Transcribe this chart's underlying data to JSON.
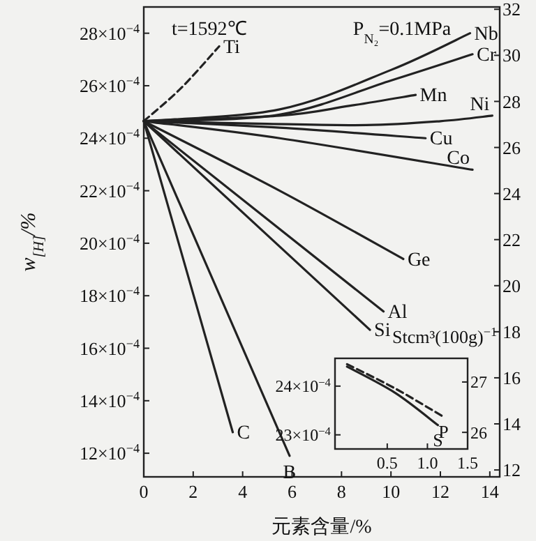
{
  "chart_data": [
    {
      "type": "line",
      "xlabel": "元素含量/%",
      "ylabel": "w$_{[H]}$/%",
      "y2label": "Stcm³(100g)$^{−1}$",
      "annotations": [
        "t=1592℃",
        "P$_{N₂}$=0.1MPa"
      ],
      "xlim": [
        0,
        14.4
      ],
      "xticks": [
        0,
        2,
        4,
        6,
        8,
        10,
        12,
        14
      ],
      "ylim": [
        0.00111,
        0.0029
      ],
      "yticks": [
        {
          "value": 0.0012,
          "label": "12×10$^{−4}$"
        },
        {
          "value": 0.0014,
          "label": "14×10$^{−4}$"
        },
        {
          "value": 0.0016,
          "label": "16×10$^{−4}$"
        },
        {
          "value": 0.0018,
          "label": "18×10$^{−4}$"
        },
        {
          "value": 0.002,
          "label": "20×10$^{−4}$"
        },
        {
          "value": 0.0022,
          "label": "22×10$^{−4}$"
        },
        {
          "value": 0.0024,
          "label": "24×10$^{−4}$"
        },
        {
          "value": 0.0026,
          "label": "26×10$^{−4}$"
        },
        {
          "value": 0.0028,
          "label": "28×10$^{−4}$"
        }
      ],
      "y2lim": [
        11.7,
        32.1
      ],
      "y2ticks": [
        12,
        14,
        16,
        18,
        20,
        22,
        24,
        26,
        28,
        30,
        32
      ],
      "grid": false,
      "legend": false,
      "marker": "none",
      "series": [
        {
          "name": "Ti",
          "color": "#222222",
          "line_style": "dashed",
          "x": [
            0,
            1.5,
            3.05
          ],
          "values": [
            0.002465,
            0.00259,
            0.00275
          ]
        },
        {
          "name": "Nb",
          "color": "#222222",
          "x": [
            0,
            5.5,
            10,
            13.2
          ],
          "values": [
            0.002465,
            0.00251,
            0.00266,
            0.0028
          ]
        },
        {
          "name": "Cr",
          "color": "#222222",
          "x": [
            0,
            5.5,
            10,
            13.3
          ],
          "values": [
            0.002465,
            0.00249,
            0.00262,
            0.00272
          ]
        },
        {
          "name": "Mn",
          "color": "#222222",
          "x": [
            0,
            5.5,
            8.3,
            11
          ],
          "values": [
            0.002465,
            0.002486,
            0.002523,
            0.002565
          ]
        },
        {
          "name": "Ni",
          "color": "#222222",
          "x": [
            0,
            5,
            9,
            12,
            14.1
          ],
          "values": [
            0.002465,
            0.002455,
            0.00245,
            0.002465,
            0.002486
          ]
        },
        {
          "name": "Cu",
          "color": "#222222",
          "x": [
            0,
            5.5,
            11.4
          ],
          "values": [
            0.002465,
            0.00244,
            0.0024
          ]
        },
        {
          "name": "Co",
          "color": "#222222",
          "x": [
            0,
            5.5,
            13.3
          ],
          "values": [
            0.002465,
            0.0024,
            0.00228
          ]
        },
        {
          "name": "Ge",
          "color": "#222222",
          "x": [
            0,
            5.5,
            10.5
          ],
          "values": [
            0.002465,
            0.0022,
            0.00194
          ]
        },
        {
          "name": "Al",
          "color": "#222222",
          "x": [
            0,
            9.7
          ],
          "values": [
            0.002465,
            0.00174
          ]
        },
        {
          "name": "Si",
          "color": "#222222",
          "x": [
            0,
            9.15
          ],
          "values": [
            0.002465,
            0.00167
          ]
        },
        {
          "name": "B",
          "color": "#222222",
          "x": [
            0,
            5.9
          ],
          "values": [
            0.002465,
            0.00119
          ]
        },
        {
          "name": "C",
          "color": "#222222",
          "x": [
            0,
            3.6
          ],
          "values": [
            0.002465,
            0.00128
          ]
        }
      ]
    },
    {
      "type": "line",
      "xlim": [
        -0.15,
        1.5
      ],
      "xticks": [
        0.5,
        {
          "value": 1,
          "label": "1.0"
        },
        1.5
      ],
      "ylim": [
        0.002271,
        0.002457
      ],
      "yticks": [
        {
          "value": 0.0023,
          "label": "23×10$^{−4}$"
        },
        {
          "value": 0.0024,
          "label": "24×10$^{−4}$"
        }
      ],
      "y2lim": [
        25.67,
        27.47
      ],
      "y2ticks": [
        26,
        27
      ],
      "grid": false,
      "legend": false,
      "marker": "none",
      "series": [
        {
          "name": "P",
          "color": "#222222",
          "line_style": "dashed",
          "x": [
            0,
            0.6,
            1.2
          ],
          "values": [
            0.002445,
            0.002395,
            0.002337
          ]
        },
        {
          "name": "S",
          "color": "#222222",
          "line_style": "solid",
          "x": [
            0,
            0.6,
            1.13
          ],
          "values": [
            0.00244,
            0.002386,
            0.00232
          ]
        }
      ]
    }
  ]
}
